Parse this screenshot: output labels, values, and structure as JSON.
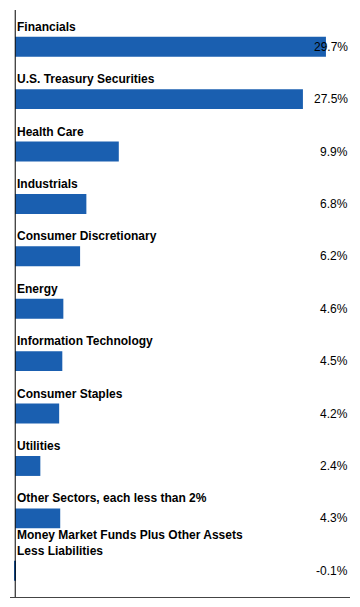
{
  "chart_data": {
    "type": "bar",
    "orientation": "horizontal",
    "categories": [
      "Financials",
      "U.S. Treasury Securities",
      "Health Care",
      "Industrials",
      "Consumer Discretionary",
      "Energy",
      "Information Technology",
      "Consumer Staples",
      "Utilities",
      "Other Sectors, each less than 2%",
      "Money Market Funds Plus Other Assets\nLess Liabilities"
    ],
    "values": [
      29.7,
      27.5,
      9.9,
      6.8,
      6.2,
      4.6,
      4.5,
      4.2,
      2.4,
      4.3,
      -0.1
    ],
    "value_labels": [
      "29.7%",
      "27.5%",
      "9.9%",
      "6.8%",
      "6.2%",
      "4.6%",
      "4.5%",
      "4.2%",
      "2.4%",
      "4.3%",
      "-0.1%"
    ],
    "data_labels": true,
    "color": "#1a5fb0",
    "xlim": [
      -0.5,
      32
    ],
    "grid": false,
    "tick_labels": false
  }
}
